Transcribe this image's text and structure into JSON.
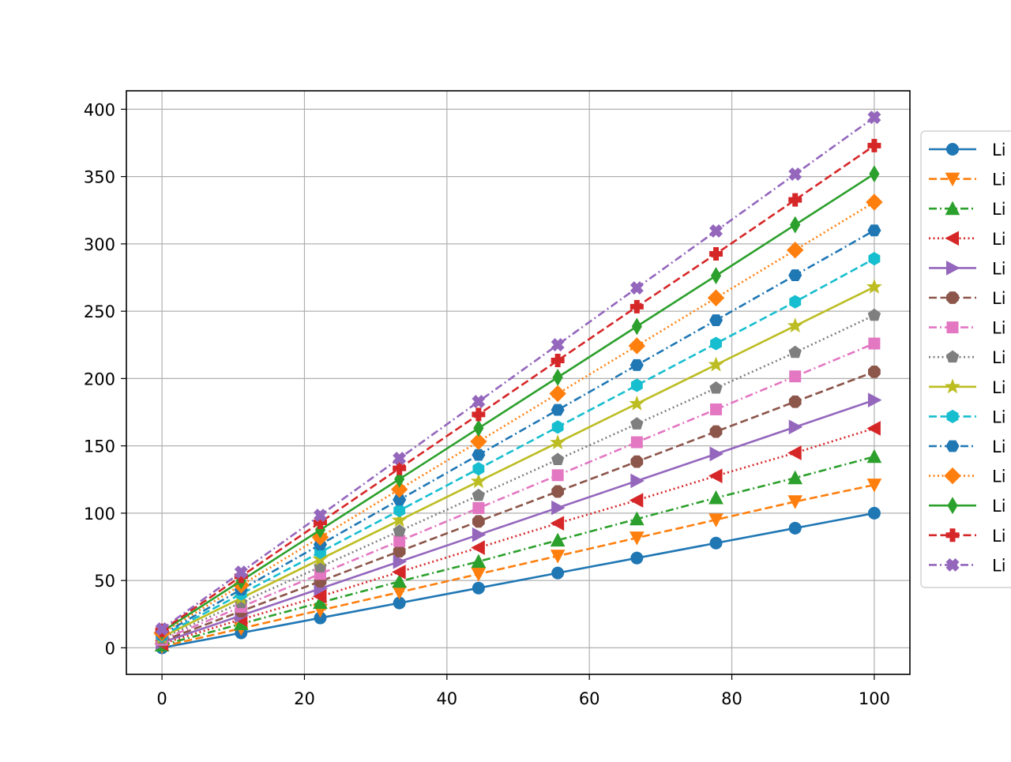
{
  "chart_data": {
    "type": "line",
    "title": "",
    "xlabel": "",
    "ylabel": "",
    "xlim": [
      -5,
      105
    ],
    "ylim": [
      -19.7,
      413.7
    ],
    "grid": true,
    "legend_position": "right",
    "x": [
      0,
      11.11,
      22.22,
      33.33,
      44.44,
      55.56,
      66.67,
      77.78,
      88.89,
      100
    ],
    "x_ticks": [
      {
        "value": 0,
        "label": "0"
      },
      {
        "value": 20,
        "label": "20"
      },
      {
        "value": 40,
        "label": "40"
      },
      {
        "value": 60,
        "label": "60"
      },
      {
        "value": 80,
        "label": "80"
      },
      {
        "value": 100,
        "label": "100"
      }
    ],
    "y_ticks": [
      {
        "value": 0,
        "label": "0"
      },
      {
        "value": 50,
        "label": "50"
      },
      {
        "value": 100,
        "label": "100"
      },
      {
        "value": 150,
        "label": "150"
      },
      {
        "value": 200,
        "label": "200"
      },
      {
        "value": 250,
        "label": "250"
      },
      {
        "value": 300,
        "label": "300"
      },
      {
        "value": 350,
        "label": "350"
      },
      {
        "value": 400,
        "label": "400"
      }
    ],
    "series": [
      {
        "legend_label": "Li",
        "color": "#1f77b4",
        "linestyle": "solid",
        "marker": "circle",
        "values": [
          0,
          11.1,
          22.2,
          33.3,
          44.4,
          55.6,
          66.7,
          77.8,
          88.9,
          100.0
        ]
      },
      {
        "legend_label": "Li",
        "color": "#ff7f0e",
        "linestyle": "dashed",
        "marker": "triangle-down",
        "values": [
          1,
          14.4,
          27.9,
          41.3,
          54.8,
          68.2,
          81.7,
          95.1,
          108.6,
          121.0
        ]
      },
      {
        "legend_label": "Li",
        "color": "#2ca02c",
        "linestyle": "dashdot",
        "marker": "triangle-up",
        "values": [
          2,
          17.8,
          33.6,
          49.3,
          64.1,
          79.9,
          95.7,
          111.4,
          126.2,
          142.0
        ]
      },
      {
        "legend_label": "Li",
        "color": "#d62728",
        "linestyle": "dotted",
        "marker": "triangle-left",
        "values": [
          3,
          21.1,
          38.2,
          56.3,
          74.4,
          92.5,
          109.6,
          127.7,
          144.8,
          163.0
        ]
      },
      {
        "legend_label": "Li",
        "color": "#9467bd",
        "linestyle": "solid",
        "marker": "triangle-right",
        "values": [
          4,
          24.0,
          44.0,
          64.0,
          84.0,
          104.0,
          124.0,
          144.0,
          164.0,
          184.0
        ]
      },
      {
        "legend_label": "Li",
        "color": "#8c564b",
        "linestyle": "dashed",
        "marker": "octagon",
        "values": [
          5,
          27.2,
          49.4,
          71.7,
          93.9,
          116.1,
          138.3,
          160.6,
          182.8,
          205.0
        ]
      },
      {
        "legend_label": "Li",
        "color": "#e377c2",
        "linestyle": "dashdot",
        "marker": "square",
        "values": [
          6,
          30.4,
          54.9,
          79.3,
          103.8,
          128.2,
          152.7,
          177.1,
          201.6,
          226.0
        ]
      },
      {
        "legend_label": "Li",
        "color": "#7f7f7f",
        "linestyle": "dotted",
        "marker": "pentagon",
        "values": [
          7,
          33.6,
          60.1,
          86.7,
          113.2,
          139.8,
          166.3,
          192.9,
          219.4,
          247.0
        ]
      },
      {
        "legend_label": "Li",
        "color": "#bcbd22",
        "linestyle": "solid",
        "marker": "star",
        "values": [
          8,
          36.9,
          65.8,
          94.7,
          123.6,
          152.4,
          181.3,
          210.2,
          239.1,
          268.0
        ]
      },
      {
        "legend_label": "Li",
        "color": "#17becf",
        "linestyle": "dashed",
        "marker": "hexagon",
        "values": [
          9,
          40.0,
          71.0,
          102.0,
          133.0,
          164.0,
          195.0,
          226.0,
          257.0,
          289.0
        ]
      },
      {
        "legend_label": "Li",
        "color": "#1f77b4",
        "linestyle": "dashdot",
        "marker": "hexagon2",
        "values": [
          10,
          43.3,
          76.7,
          110.0,
          143.3,
          176.7,
          210.0,
          243.3,
          276.7,
          310.0
        ]
      },
      {
        "legend_label": "Li",
        "color": "#ff7f0e",
        "linestyle": "dotted",
        "marker": "diamond",
        "values": [
          11,
          46.6,
          82.1,
          117.7,
          153.2,
          188.8,
          224.3,
          259.9,
          295.4,
          331.0
        ]
      },
      {
        "legend_label": "Li",
        "color": "#2ca02c",
        "linestyle": "solid",
        "marker": "thin-diamond",
        "values": [
          12,
          49.8,
          87.6,
          125.3,
          163.1,
          200.9,
          238.7,
          276.4,
          314.2,
          352.0
        ]
      },
      {
        "legend_label": "Li",
        "color": "#d62728",
        "linestyle": "dashed",
        "marker": "plus-filled",
        "values": [
          13,
          53.1,
          93.2,
          133.3,
          173.3,
          213.4,
          253.4,
          292.6,
          332.7,
          373.0
        ]
      },
      {
        "legend_label": "Li",
        "color": "#9467bd",
        "linestyle": "dashdot",
        "marker": "x-filled",
        "values": [
          14,
          56.2,
          98.4,
          140.7,
          182.9,
          225.1,
          267.3,
          309.6,
          351.8,
          394.0
        ]
      }
    ]
  }
}
